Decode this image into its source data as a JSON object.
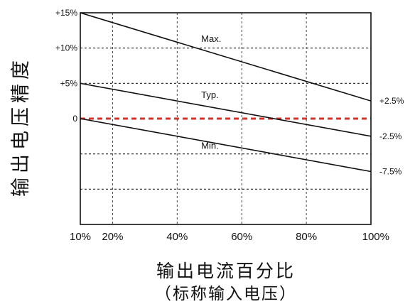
{
  "chart_data": {
    "type": "line",
    "title": "",
    "ylabel": "输出电压精度",
    "xlabel_line1": "输出电流百分比",
    "xlabel_line2": "（标称输入电压）",
    "x_ticks": [
      "10%",
      "20%",
      "40%",
      "60%",
      "80%",
      "100%"
    ],
    "x_tick_values": [
      10,
      20,
      40,
      60,
      80,
      100
    ],
    "xlim": [
      10,
      100
    ],
    "y_ticks_left": [
      {
        "value": 15,
        "label": "+15%"
      },
      {
        "value": 10,
        "label": "+10%"
      },
      {
        "value": 5,
        "label": "+5%"
      },
      {
        "value": 0,
        "label": "0"
      }
    ],
    "y_ticks_right": [
      {
        "value": 2.5,
        "label": "+2.5%"
      },
      {
        "value": -2.5,
        "label": "-2.5%"
      },
      {
        "value": -7.5,
        "label": "-7.5%"
      }
    ],
    "ylim": [
      -15,
      15
    ],
    "gridlines_y": [
      10,
      5,
      0,
      -5,
      -10
    ],
    "gridlines_x": [
      20,
      40,
      60,
      80
    ],
    "grid": true,
    "zero_line_color": "#e03020",
    "series": [
      {
        "name": "Max.",
        "x": [
          10,
          100
        ],
        "y": [
          15,
          2.5
        ]
      },
      {
        "name": "Typ.",
        "x": [
          10,
          100
        ],
        "y": [
          5,
          -2.5
        ]
      },
      {
        "name": "Min.",
        "x": [
          10,
          100
        ],
        "y": [
          0,
          -7.5
        ]
      }
    ],
    "series_label_x": [
      47,
      47,
      47
    ]
  }
}
